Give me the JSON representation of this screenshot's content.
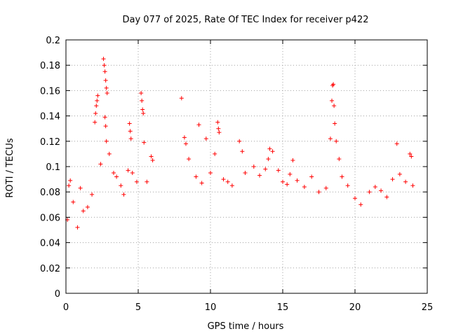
{
  "chart_data": {
    "type": "scatter",
    "title": "Day 077 of 2025, Rate Of TEC Index for receiver p422",
    "xlabel": "GPS time / hours",
    "ylabel": "ROTI / TECUs",
    "xlim": [
      0,
      25
    ],
    "ylim": [
      0,
      0.2
    ],
    "x_ticks": [
      0,
      5,
      10,
      15,
      20,
      25
    ],
    "y_ticks": [
      0,
      0.02,
      0.04,
      0.06,
      0.08,
      0.1,
      0.12,
      0.14,
      0.16,
      0.18,
      0.2
    ],
    "x_tick_labels": [
      "0",
      "5",
      "10",
      "15",
      "20",
      "25"
    ],
    "y_tick_labels": [
      "0",
      "0.02",
      "0.04",
      "0.06",
      "0.08",
      "0.1",
      "0.12",
      "0.14",
      "0.16",
      "0.18",
      "0.2"
    ],
    "grid": true,
    "marker": "+",
    "marker_color": "#ff0000",
    "data_gap_hours": [
      6.1,
      7.9
    ],
    "series": [
      {
        "name": "ROTI",
        "points": [
          [
            0.1,
            0.058
          ],
          [
            0.2,
            0.085
          ],
          [
            0.3,
            0.089
          ],
          [
            0.5,
            0.072
          ],
          [
            0.8,
            0.052
          ],
          [
            1.0,
            0.083
          ],
          [
            1.2,
            0.065
          ],
          [
            1.5,
            0.068
          ],
          [
            1.8,
            0.078
          ],
          [
            2.0,
            0.135
          ],
          [
            2.05,
            0.142
          ],
          [
            2.1,
            0.148
          ],
          [
            2.15,
            0.152
          ],
          [
            2.2,
            0.156
          ],
          [
            2.4,
            0.102
          ],
          [
            2.6,
            0.185
          ],
          [
            2.65,
            0.18
          ],
          [
            2.7,
            0.175
          ],
          [
            2.75,
            0.168
          ],
          [
            2.8,
            0.162
          ],
          [
            2.85,
            0.158
          ],
          [
            2.7,
            0.139
          ],
          [
            2.75,
            0.132
          ],
          [
            2.8,
            0.12
          ],
          [
            3.0,
            0.11
          ],
          [
            3.3,
            0.095
          ],
          [
            3.5,
            0.092
          ],
          [
            3.8,
            0.085
          ],
          [
            4.0,
            0.078
          ],
          [
            4.3,
            0.097
          ],
          [
            4.4,
            0.134
          ],
          [
            4.45,
            0.128
          ],
          [
            4.5,
            0.122
          ],
          [
            4.6,
            0.095
          ],
          [
            4.9,
            0.088
          ],
          [
            5.2,
            0.158
          ],
          [
            5.25,
            0.152
          ],
          [
            5.3,
            0.145
          ],
          [
            5.35,
            0.142
          ],
          [
            5.4,
            0.119
          ],
          [
            5.6,
            0.088
          ],
          [
            5.9,
            0.108
          ],
          [
            6.0,
            0.105
          ],
          [
            8.0,
            0.154
          ],
          [
            8.2,
            0.123
          ],
          [
            8.3,
            0.118
          ],
          [
            8.5,
            0.106
          ],
          [
            9.0,
            0.092
          ],
          [
            9.2,
            0.133
          ],
          [
            9.4,
            0.087
          ],
          [
            9.7,
            0.122
          ],
          [
            10.0,
            0.095
          ],
          [
            10.3,
            0.11
          ],
          [
            10.5,
            0.135
          ],
          [
            10.55,
            0.13
          ],
          [
            10.6,
            0.127
          ],
          [
            10.9,
            0.09
          ],
          [
            11.2,
            0.088
          ],
          [
            11.5,
            0.085
          ],
          [
            12.0,
            0.12
          ],
          [
            12.2,
            0.112
          ],
          [
            12.4,
            0.095
          ],
          [
            13.0,
            0.1
          ],
          [
            13.4,
            0.093
          ],
          [
            13.8,
            0.098
          ],
          [
            14.0,
            0.106
          ],
          [
            14.1,
            0.114
          ],
          [
            14.3,
            0.112
          ],
          [
            14.7,
            0.097
          ],
          [
            15.0,
            0.088
          ],
          [
            15.3,
            0.086
          ],
          [
            15.5,
            0.094
          ],
          [
            15.7,
            0.105
          ],
          [
            16.0,
            0.089
          ],
          [
            16.5,
            0.084
          ],
          [
            17.0,
            0.092
          ],
          [
            17.5,
            0.08
          ],
          [
            18.0,
            0.083
          ],
          [
            18.3,
            0.122
          ],
          [
            18.4,
            0.152
          ],
          [
            18.45,
            0.164
          ],
          [
            18.5,
            0.165
          ],
          [
            18.55,
            0.148
          ],
          [
            18.6,
            0.134
          ],
          [
            18.7,
            0.12
          ],
          [
            18.9,
            0.106
          ],
          [
            19.1,
            0.092
          ],
          [
            19.5,
            0.085
          ],
          [
            20.0,
            0.075
          ],
          [
            20.4,
            0.07
          ],
          [
            21.0,
            0.08
          ],
          [
            21.4,
            0.084
          ],
          [
            21.8,
            0.081
          ],
          [
            22.2,
            0.076
          ],
          [
            22.6,
            0.09
          ],
          [
            22.9,
            0.118
          ],
          [
            23.1,
            0.094
          ],
          [
            23.5,
            0.088
          ],
          [
            23.8,
            0.11
          ],
          [
            23.9,
            0.108
          ],
          [
            24.0,
            0.085
          ]
        ]
      }
    ]
  }
}
